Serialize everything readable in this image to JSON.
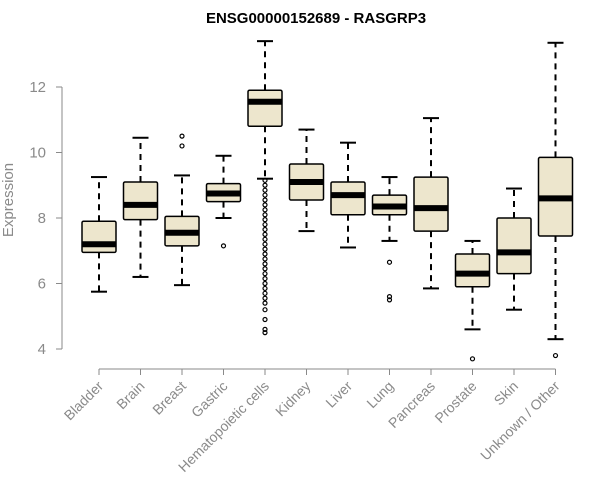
{
  "chart_data": {
    "type": "boxplot",
    "title": "ENSG00000152689 - RASGRP3",
    "xlabel": "",
    "ylabel": "Expression",
    "ylim": [
      3.5,
      13.5
    ],
    "yticks": [
      4,
      6,
      8,
      10,
      12
    ],
    "box_fill": "#ede6cd",
    "median_color": "#000000",
    "series": [
      {
        "name": "Bladder",
        "whisker_low": 5.75,
        "q1": 6.95,
        "median": 7.2,
        "q3": 7.9,
        "whisker_high": 9.25,
        "outliers": []
      },
      {
        "name": "Brain",
        "whisker_low": 6.2,
        "q1": 7.95,
        "median": 8.4,
        "q3": 9.1,
        "whisker_high": 10.45,
        "outliers": []
      },
      {
        "name": "Breast",
        "whisker_low": 5.95,
        "q1": 7.15,
        "median": 7.55,
        "q3": 8.05,
        "whisker_high": 9.3,
        "outliers": [
          10.5,
          10.2
        ]
      },
      {
        "name": "Gastric",
        "whisker_low": 8.0,
        "q1": 8.5,
        "median": 8.75,
        "q3": 9.05,
        "whisker_high": 9.9,
        "outliers": [
          7.15
        ]
      },
      {
        "name": "Hematopoietic cells",
        "whisker_low": 9.2,
        "q1": 10.8,
        "median": 11.55,
        "q3": 11.9,
        "whisker_high": 13.4,
        "outliers": [
          9.15,
          9.0,
          8.85,
          8.7,
          8.55,
          8.4,
          8.25,
          8.1,
          7.95,
          7.8,
          7.65,
          7.5,
          7.35,
          7.2,
          7.05,
          6.9,
          6.75,
          6.6,
          6.45,
          6.3,
          6.15,
          6.0,
          5.85,
          5.7,
          5.55,
          5.4,
          5.2,
          4.9,
          4.6,
          4.5
        ]
      },
      {
        "name": "Kidney",
        "whisker_low": 7.6,
        "q1": 8.55,
        "median": 9.1,
        "q3": 9.65,
        "whisker_high": 10.7,
        "outliers": []
      },
      {
        "name": "Liver",
        "whisker_low": 7.1,
        "q1": 8.1,
        "median": 8.7,
        "q3": 9.1,
        "whisker_high": 10.3,
        "outliers": []
      },
      {
        "name": "Lung",
        "whisker_low": 7.3,
        "q1": 8.1,
        "median": 8.35,
        "q3": 8.7,
        "whisker_high": 9.25,
        "outliers": [
          6.65,
          5.6,
          5.5
        ]
      },
      {
        "name": "Pancreas",
        "whisker_low": 5.85,
        "q1": 7.6,
        "median": 8.3,
        "q3": 9.25,
        "whisker_high": 11.05,
        "outliers": []
      },
      {
        "name": "Prostate",
        "whisker_low": 4.6,
        "q1": 5.9,
        "median": 6.3,
        "q3": 6.9,
        "whisker_high": 7.3,
        "outliers": [
          3.7
        ]
      },
      {
        "name": "Skin",
        "whisker_low": 5.2,
        "q1": 6.3,
        "median": 6.95,
        "q3": 8.0,
        "whisker_high": 8.9,
        "outliers": []
      },
      {
        "name": "Unknown / Other",
        "whisker_low": 4.3,
        "q1": 7.45,
        "median": 8.6,
        "q3": 9.85,
        "whisker_high": 13.35,
        "outliers": [
          3.8
        ]
      }
    ]
  }
}
